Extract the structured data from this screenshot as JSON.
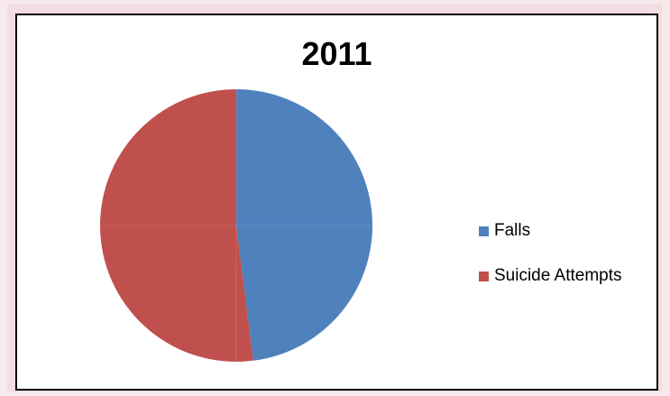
{
  "chart_data": {
    "type": "pie",
    "title": "2011",
    "categories": [
      "Falls",
      "Suicide Attempts"
    ],
    "values": [
      48,
      52
    ],
    "colors": [
      "#4f81bd",
      "#c0504d"
    ],
    "start_angle_deg": 0,
    "direction": "clockwise",
    "legend_position": "right"
  }
}
